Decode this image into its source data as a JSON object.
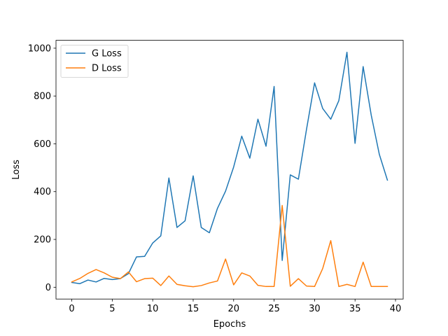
{
  "chart_data": {
    "type": "line",
    "xlabel": "Epochs",
    "ylabel": "Loss",
    "xlim": [
      -1.95,
      40.95
    ],
    "ylim": [
      -49.4,
      1033
    ],
    "xticks": [
      0,
      5,
      10,
      15,
      20,
      25,
      30,
      35,
      40
    ],
    "yticks": [
      0,
      200,
      400,
      600,
      800,
      1000
    ],
    "legend_position": "upper-left",
    "grid": false,
    "x": [
      0,
      1,
      2,
      3,
      4,
      5,
      6,
      7,
      8,
      9,
      10,
      11,
      12,
      13,
      14,
      15,
      16,
      17,
      18,
      19,
      20,
      21,
      22,
      23,
      24,
      25,
      26,
      27,
      28,
      29,
      30,
      31,
      32,
      33,
      34,
      35,
      36,
      37,
      38,
      39
    ],
    "series": [
      {
        "name": "G Loss",
        "color": "#1f77b4",
        "values": [
          20,
          15,
          30,
          22,
          37,
          32,
          36,
          57,
          127,
          129,
          185,
          215,
          457,
          250,
          278,
          466,
          250,
          228,
          330,
          402,
          503,
          632,
          540,
          703,
          590,
          840,
          112,
          470,
          452,
          660,
          855,
          748,
          703,
          781,
          983,
          602,
          923,
          720,
          556,
          448
        ]
      },
      {
        "name": "D Loss",
        "color": "#ff7f0e",
        "values": [
          22,
          37,
          58,
          74,
          60,
          42,
          36,
          64,
          23,
          36,
          38,
          7,
          47,
          12,
          6,
          2,
          7,
          18,
          26,
          118,
          10,
          60,
          47,
          8,
          3,
          3,
          342,
          4,
          36,
          5,
          3,
          78,
          195,
          3,
          12,
          3,
          105,
          3,
          3,
          3
        ]
      }
    ]
  }
}
